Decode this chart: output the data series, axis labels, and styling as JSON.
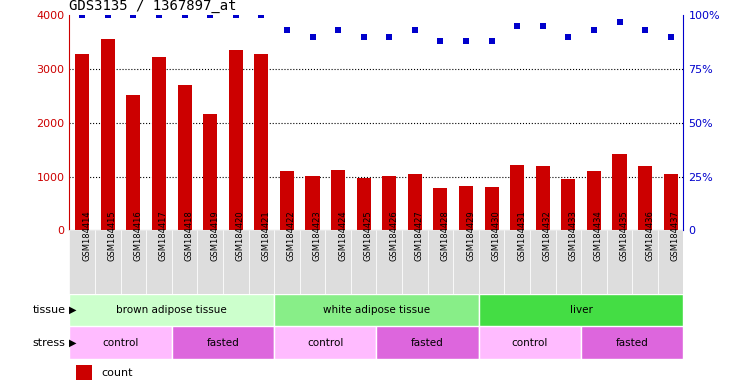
{
  "title": "GDS3135 / 1367897_at",
  "samples": [
    "GSM184414",
    "GSM184415",
    "GSM184416",
    "GSM184417",
    "GSM184418",
    "GSM184419",
    "GSM184420",
    "GSM184421",
    "GSM184422",
    "GSM184423",
    "GSM184424",
    "GSM184425",
    "GSM184426",
    "GSM184427",
    "GSM184428",
    "GSM184429",
    "GSM184430",
    "GSM184431",
    "GSM184432",
    "GSM184433",
    "GSM184434",
    "GSM184435",
    "GSM184436",
    "GSM184437"
  ],
  "counts": [
    3280,
    3560,
    2510,
    3230,
    2710,
    2170,
    3360,
    3290,
    1100,
    1020,
    1130,
    970,
    1020,
    1050,
    790,
    820,
    800,
    1220,
    1200,
    950,
    1110,
    1430,
    1190,
    1050
  ],
  "percentile_ranks": [
    100,
    100,
    100,
    100,
    100,
    100,
    100,
    100,
    93,
    90,
    93,
    90,
    90,
    93,
    88,
    88,
    88,
    95,
    95,
    90,
    93,
    97,
    93,
    90
  ],
  "bar_color": "#cc0000",
  "dot_color": "#0000cc",
  "ylim_left": [
    0,
    4000
  ],
  "ylim_right": [
    0,
    100
  ],
  "yticks_left": [
    0,
    1000,
    2000,
    3000,
    4000
  ],
  "yticks_right": [
    0,
    25,
    50,
    75,
    100
  ],
  "tissue_groups": [
    {
      "label": "brown adipose tissue",
      "start": 0,
      "end": 8,
      "color": "#ccffcc"
    },
    {
      "label": "white adipose tissue",
      "start": 8,
      "end": 16,
      "color": "#88ee88"
    },
    {
      "label": "liver",
      "start": 16,
      "end": 24,
      "color": "#44dd44"
    }
  ],
  "stress_groups": [
    {
      "label": "control",
      "start": 0,
      "end": 4,
      "color": "#ffbbff"
    },
    {
      "label": "fasted",
      "start": 4,
      "end": 8,
      "color": "#dd66dd"
    },
    {
      "label": "control",
      "start": 8,
      "end": 12,
      "color": "#ffbbff"
    },
    {
      "label": "fasted",
      "start": 12,
      "end": 16,
      "color": "#dd66dd"
    },
    {
      "label": "control",
      "start": 16,
      "end": 20,
      "color": "#ffbbff"
    },
    {
      "label": "fasted",
      "start": 20,
      "end": 24,
      "color": "#dd66dd"
    }
  ],
  "background_color": "#ffffff",
  "plot_bg_color": "#ffffff",
  "left_axis_color": "#cc0000",
  "right_axis_color": "#0000cc",
  "grid_color": "#000000",
  "title_color": "#000000",
  "xticklabel_bg": "#dddddd",
  "legend_count_color": "#cc0000",
  "legend_pct_color": "#0000cc"
}
